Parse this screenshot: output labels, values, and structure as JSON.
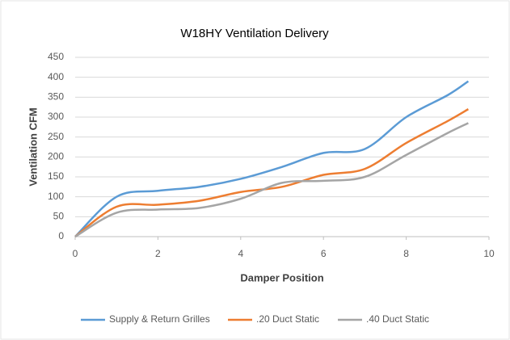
{
  "chart_data": {
    "type": "line",
    "title": "W18HY Ventilation Delivery",
    "x_label": "Damper Position",
    "y_label": "Ventilation CFM",
    "x": [
      0,
      1,
      2,
      3,
      4,
      5,
      6,
      7,
      8,
      9,
      9.5
    ],
    "series": [
      {
        "name": "Supply & Return Grilles",
        "color": "#5b9bd5",
        "values": [
          0,
          100,
          115,
          125,
          145,
          175,
          210,
          220,
          300,
          355,
          390
        ]
      },
      {
        "name": ".20 Duct Static",
        "color": "#ed7d31",
        "values": [
          0,
          75,
          80,
          90,
          112,
          125,
          155,
          170,
          235,
          290,
          320
        ]
      },
      {
        "name": ".40 Duct Static",
        "color": "#a5a5a5",
        "values": [
          0,
          60,
          68,
          72,
          95,
          135,
          140,
          150,
          205,
          260,
          285
        ]
      }
    ],
    "xlim": [
      0,
      10
    ],
    "xticks": [
      0,
      2,
      4,
      6,
      8,
      10
    ],
    "ylim": [
      0,
      450
    ],
    "yticks": [
      0,
      50,
      100,
      150,
      200,
      250,
      300,
      350,
      400,
      450
    ],
    "grid": true,
    "legend": "bottom"
  }
}
